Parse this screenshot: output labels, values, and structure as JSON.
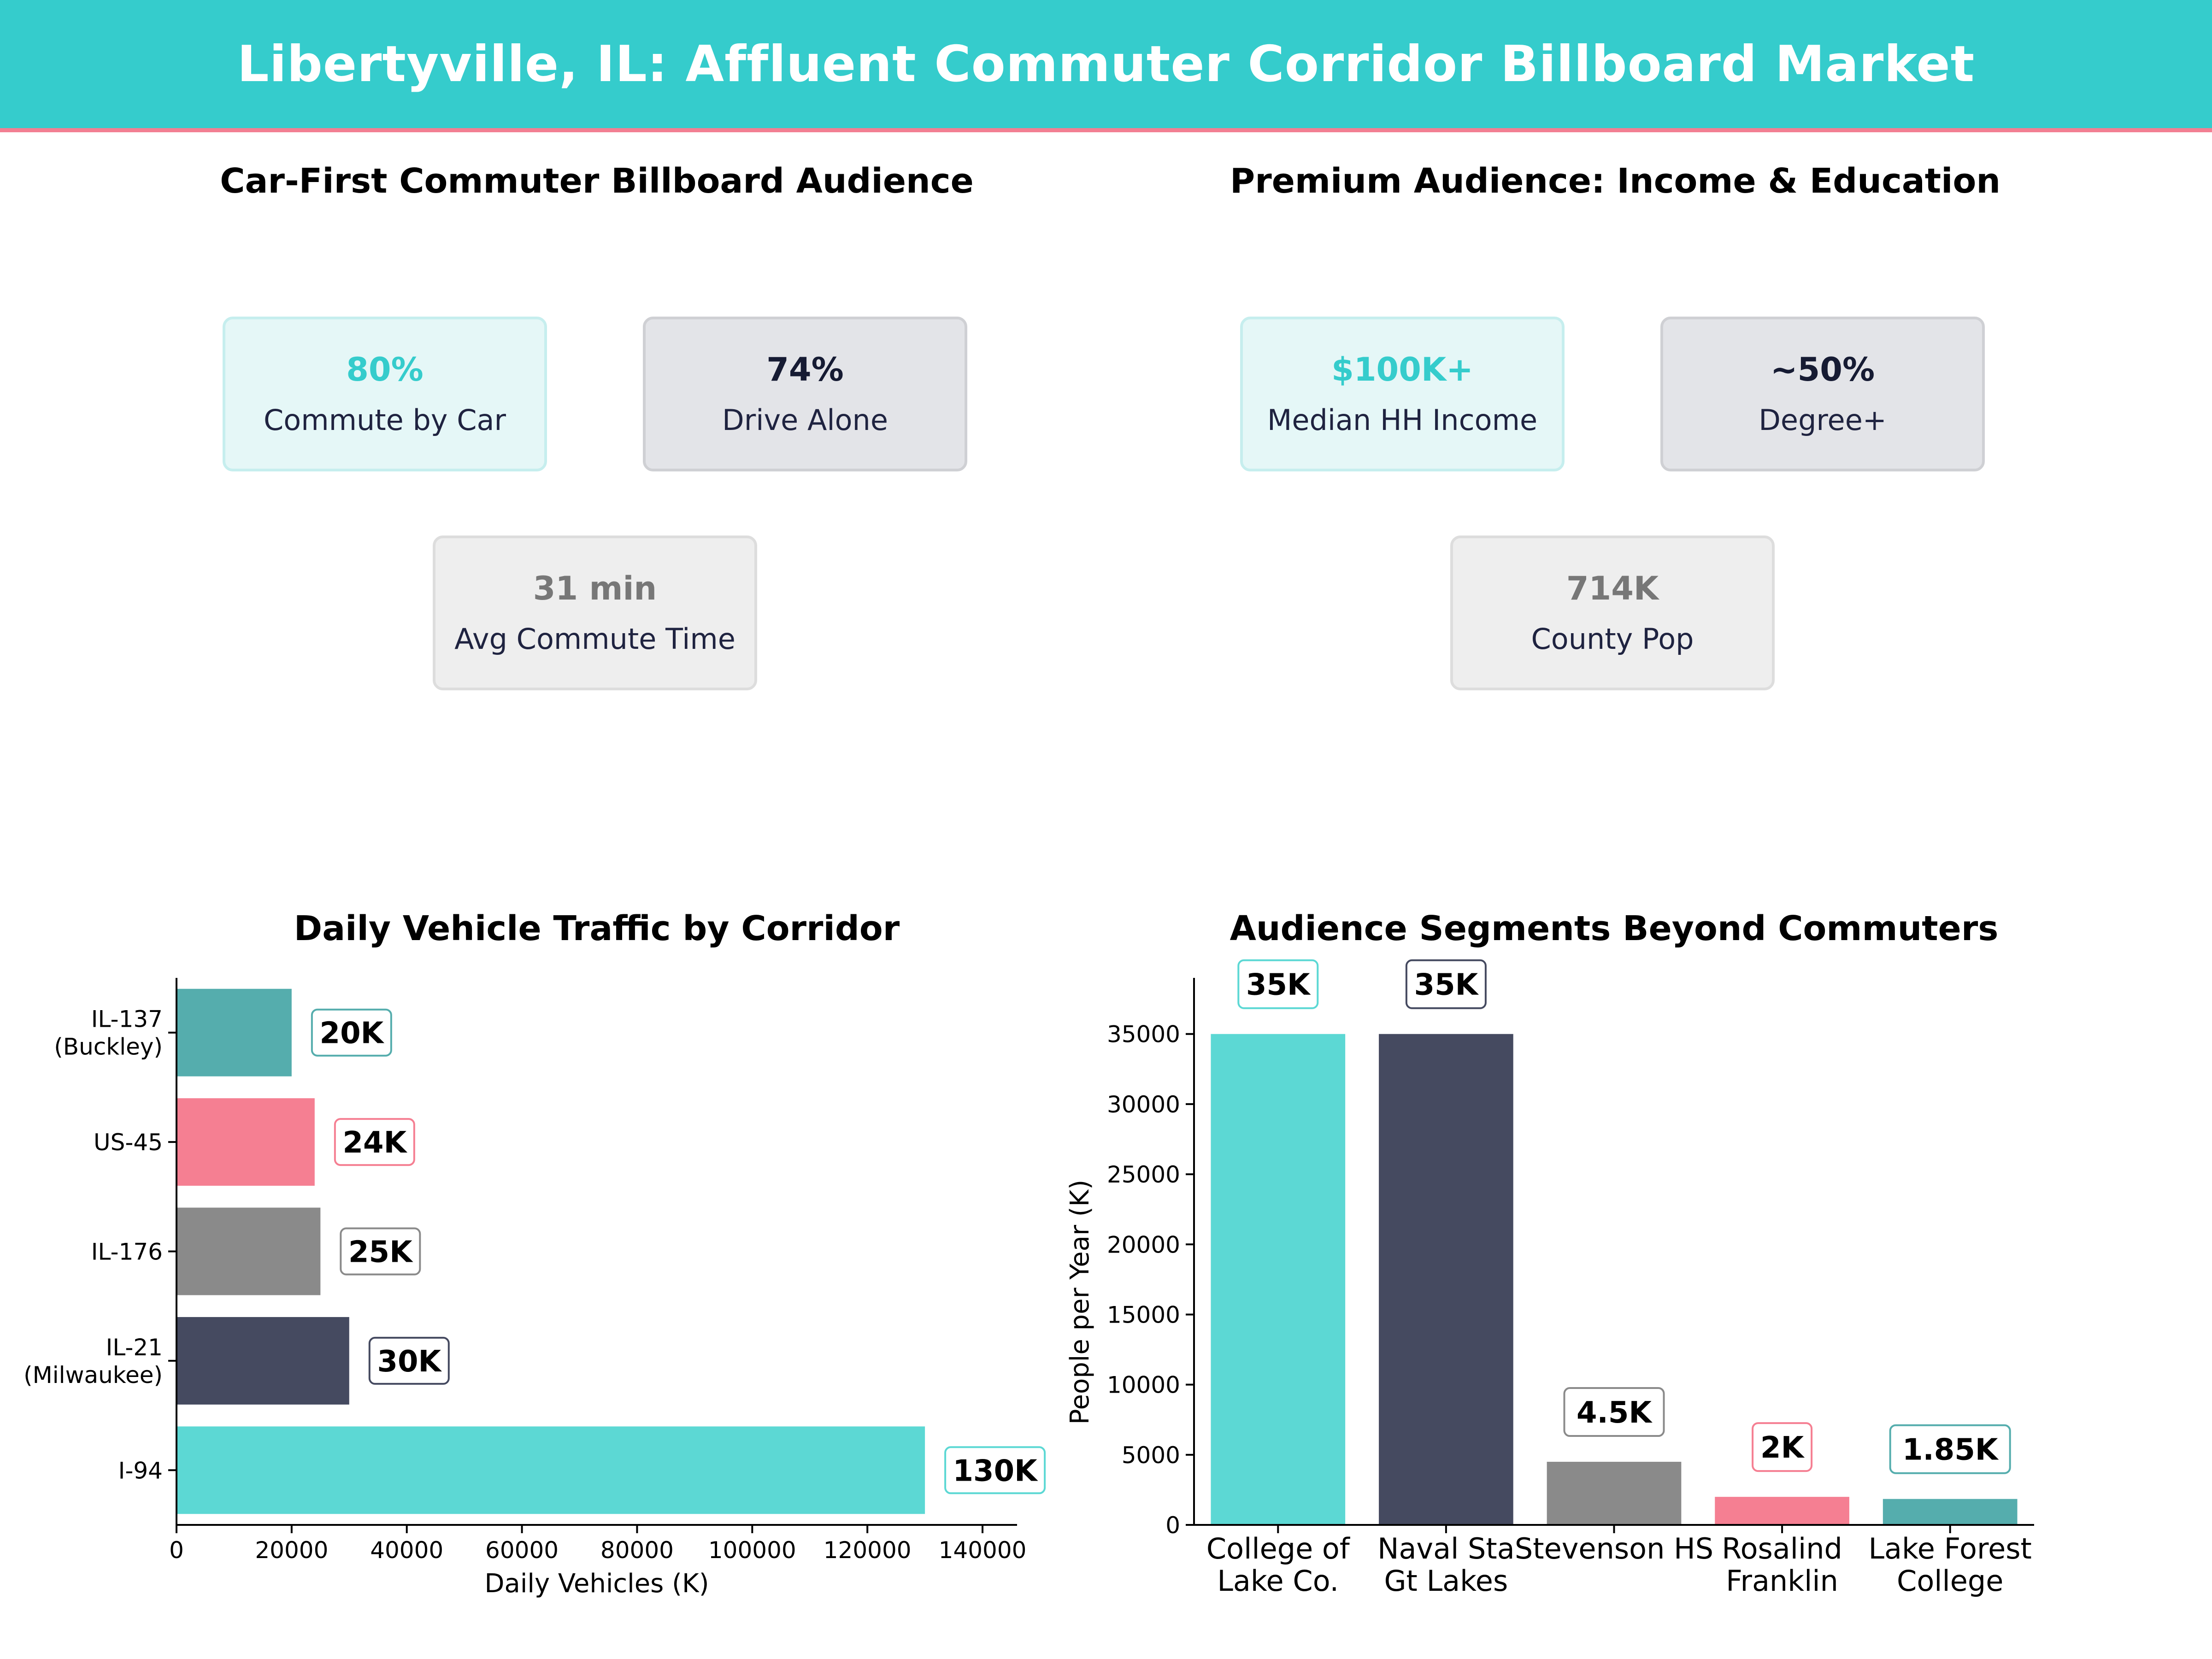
{
  "header": {
    "title": "Libertyville, IL: Affluent Commuter Corridor Billboard Market"
  },
  "colors": {
    "teal": "#5cd8d4",
    "navy": "#454a60",
    "grey": "#8a8a8a",
    "pink": "#f57f92",
    "darkteal": "#55adad",
    "banner": "#35cccc",
    "accent_line": "#f27f92"
  },
  "panels": {
    "commuter": {
      "title": "Car-First Commuter Billboard Audience",
      "kpis": [
        {
          "value": "80%",
          "label": "Commute by Car",
          "style": "teal"
        },
        {
          "value": "74%",
          "label": "Drive Alone",
          "style": "navy"
        },
        {
          "value": "31 min",
          "label": "Avg Commute Time",
          "style": "grey"
        }
      ]
    },
    "premium": {
      "title": "Premium Audience: Income & Education",
      "kpis": [
        {
          "value": "$100K+",
          "label": "Median HH Income",
          "style": "teal"
        },
        {
          "value": "~50%",
          "label": "Degree+",
          "style": "navy"
        },
        {
          "value": "714K",
          "label": "County Pop",
          "style": "grey"
        }
      ]
    }
  },
  "chart_data": [
    {
      "type": "bar",
      "orientation": "horizontal",
      "title": "Daily Vehicle Traffic by Corridor",
      "xlabel": "Daily Vehicles (K)",
      "ylabel": "",
      "categories": [
        "I-94",
        "IL-21\n(Milwaukee)",
        "IL-176",
        "US-45",
        "IL-137\n(Buckley)"
      ],
      "values": [
        130000,
        30000,
        25000,
        24000,
        20000
      ],
      "data_labels": [
        "130K",
        "30K",
        "25K",
        "24K",
        "20K"
      ],
      "bar_colors": [
        "#5cd8d4",
        "#454a60",
        "#8a8a8a",
        "#f57f92",
        "#55adad"
      ],
      "xlim": [
        0,
        146000
      ],
      "xticks": [
        0,
        20000,
        40000,
        60000,
        80000,
        100000,
        120000,
        140000
      ],
      "grid": false
    },
    {
      "type": "bar",
      "orientation": "vertical",
      "title": "Audience Segments Beyond Commuters",
      "xlabel": "",
      "ylabel": "People per Year (K)",
      "categories": [
        "College of\nLake Co.",
        "Naval Sta\nGt Lakes",
        "Stevenson HS",
        "Rosalind\nFranklin",
        "Lake Forest\nCollege"
      ],
      "values": [
        35000,
        35000,
        4500,
        2000,
        1850
      ],
      "data_labels": [
        "35K",
        "35K",
        "4.5K",
        "2K",
        "1.85K"
      ],
      "bar_colors": [
        "#5cd8d4",
        "#454a60",
        "#8a8a8a",
        "#f57f92",
        "#55adad"
      ],
      "ylim": [
        0,
        39000
      ],
      "yticks": [
        0,
        5000,
        10000,
        15000,
        20000,
        25000,
        30000,
        35000
      ],
      "grid": false
    }
  ]
}
